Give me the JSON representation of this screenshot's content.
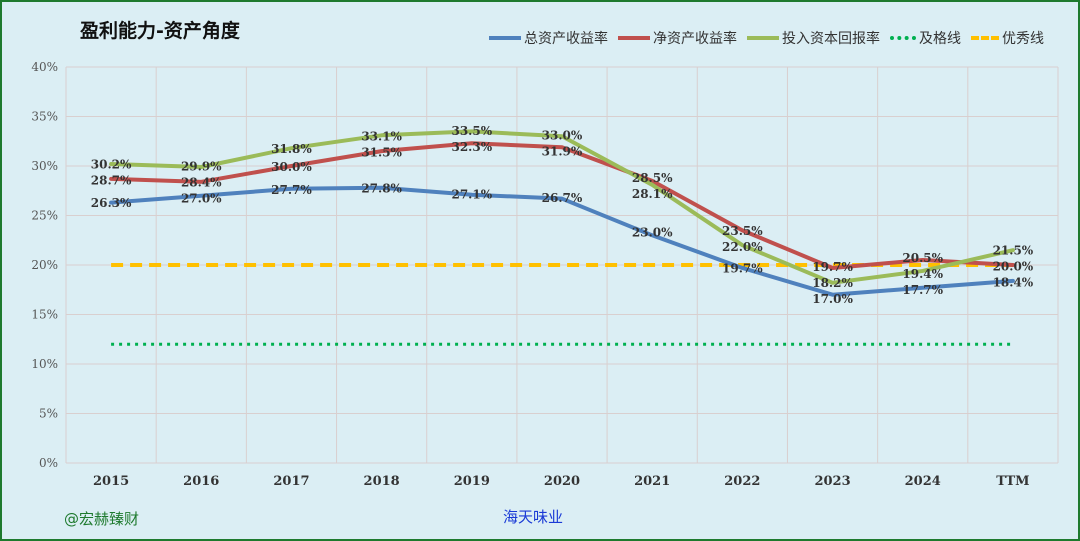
{
  "chart_data": {
    "type": "line",
    "title": "盈利能力-资产角度",
    "categories": [
      "2015",
      "2016",
      "2017",
      "2018",
      "2019",
      "2020",
      "2021",
      "2022",
      "2023",
      "2024",
      "TTM"
    ],
    "ylim": [
      0,
      40
    ],
    "yticks": [
      "0%",
      "5%",
      "10%",
      "15%",
      "20%",
      "25%",
      "30%",
      "35%",
      "40%"
    ],
    "grid": true,
    "legend_position": "top-right",
    "series": [
      {
        "name": "总资产收益率",
        "color": "#4f81bd",
        "style": "solid",
        "values": [
          26.3,
          27.0,
          27.7,
          27.8,
          27.1,
          26.7,
          23.0,
          19.7,
          17.0,
          17.7,
          18.4
        ],
        "labels": [
          "26.3%",
          "27.0%",
          "27.7%",
          "27.8%",
          "27.1%",
          "26.7%",
          "23.0%",
          "19.7%",
          "17.0%",
          "17.7%",
          "18.4%"
        ]
      },
      {
        "name": "净资产收益率",
        "color": "#c0504d",
        "style": "solid",
        "values": [
          28.7,
          28.4,
          30.0,
          31.5,
          32.3,
          31.9,
          28.5,
          23.5,
          19.7,
          20.5,
          20.0
        ],
        "labels": [
          "28.7%",
          "28.4%",
          "30.0%",
          "31.5%",
          "32.3%",
          "31.9%",
          "28.5%",
          "23.5%",
          "19.7%",
          "20.5%",
          "20.0%"
        ]
      },
      {
        "name": "投入资本回报率",
        "color": "#9bbb59",
        "style": "solid",
        "values": [
          30.2,
          29.9,
          31.8,
          33.1,
          33.5,
          33.0,
          28.1,
          22.0,
          18.2,
          19.4,
          21.5
        ],
        "labels": [
          "30.2%",
          "29.9%",
          "31.8%",
          "33.1%",
          "33.5%",
          "33.0%",
          "28.1%",
          "22.0%",
          "18.2%",
          "19.4%",
          "21.5%"
        ]
      },
      {
        "name": "及格线",
        "color": "#00b050",
        "style": "dotted",
        "values": [
          12,
          12,
          12,
          12,
          12,
          12,
          12,
          12,
          12,
          12,
          12
        ]
      },
      {
        "name": "优秀线",
        "color": "#ffc000",
        "style": "dashed",
        "values": [
          20,
          20,
          20,
          20,
          20,
          20,
          20,
          20,
          20,
          20,
          20
        ]
      }
    ]
  },
  "watermark": "@宏赫臻财",
  "company": "海天味业"
}
